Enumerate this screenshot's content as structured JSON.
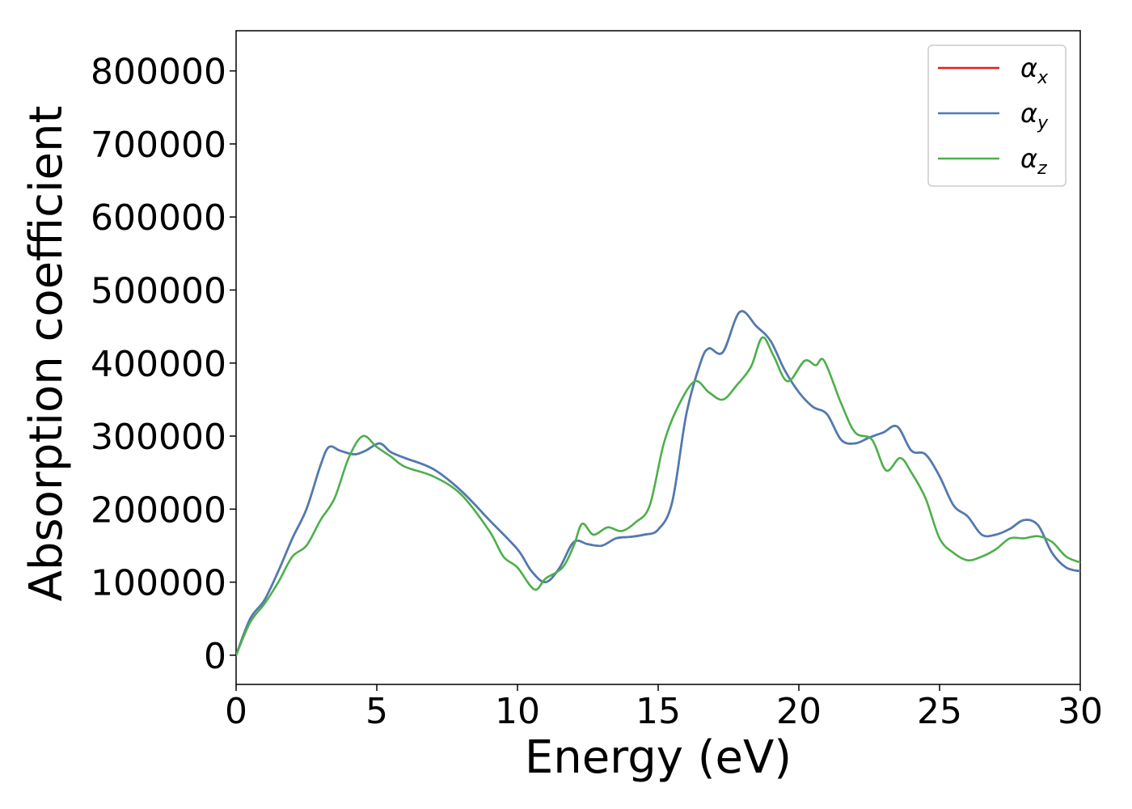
{
  "chart_data": {
    "type": "line",
    "title": "",
    "xlabel": "Energy (eV)",
    "ylabel": "Absorption coefficient",
    "xlim": [
      0,
      30
    ],
    "ylim": [
      -40000,
      855000
    ],
    "xticks": [
      0,
      5,
      10,
      15,
      20,
      25,
      30
    ],
    "yticks": [
      0,
      100000,
      200000,
      300000,
      400000,
      500000,
      600000,
      700000,
      800000
    ],
    "xtick_labels": [
      "0",
      "5",
      "10",
      "15",
      "20",
      "25",
      "30"
    ],
    "ytick_labels": [
      "0",
      "100000",
      "200000",
      "300000",
      "400000",
      "500000",
      "600000",
      "700000",
      "800000"
    ],
    "grid": false,
    "legend_position": "top-right",
    "series": [
      {
        "name": "α_x",
        "legend_symbol": "α",
        "legend_sub": "x",
        "color": "#e41a1c",
        "x": [
          0,
          0.5,
          1,
          1.5,
          2,
          2.5,
          3,
          3.3,
          3.7,
          4.2,
          4.6,
          5.1,
          5.5,
          6,
          7,
          8,
          9,
          10,
          10.5,
          11,
          11.5,
          12,
          12.5,
          13,
          13.5,
          14,
          14.5,
          15,
          15.5,
          16,
          16.5,
          16.8,
          17.3,
          17.9,
          18.5,
          19,
          19.5,
          20,
          20.5,
          21,
          21.5,
          22,
          22.5,
          23,
          23.5,
          24,
          24.5,
          25,
          25.5,
          26,
          26.5,
          27,
          27.5,
          28,
          28.5,
          29,
          29.5,
          30
        ],
        "y": [
          0,
          50000,
          75000,
          115000,
          160000,
          200000,
          260000,
          285000,
          280000,
          275000,
          280000,
          290000,
          278000,
          270000,
          255000,
          225000,
          185000,
          145000,
          115000,
          100000,
          120000,
          155000,
          152000,
          150000,
          160000,
          162000,
          165000,
          172000,
          210000,
          330000,
          400000,
          420000,
          415000,
          470000,
          450000,
          430000,
          390000,
          360000,
          340000,
          330000,
          295000,
          290000,
          298000,
          305000,
          313000,
          280000,
          275000,
          245000,
          205000,
          190000,
          165000,
          165000,
          173000,
          185000,
          178000,
          140000,
          120000,
          115000
        ]
      },
      {
        "name": "α_y",
        "legend_symbol": "α",
        "legend_sub": "y",
        "color": "#4a7db5",
        "x": [
          0,
          0.5,
          1,
          1.5,
          2,
          2.5,
          3,
          3.3,
          3.7,
          4.2,
          4.6,
          5.1,
          5.5,
          6,
          7,
          8,
          9,
          10,
          10.5,
          11,
          11.5,
          12,
          12.5,
          13,
          13.5,
          14,
          14.5,
          15,
          15.5,
          16,
          16.5,
          16.8,
          17.3,
          17.9,
          18.5,
          19,
          19.5,
          20,
          20.5,
          21,
          21.5,
          22,
          22.5,
          23,
          23.5,
          24,
          24.5,
          25,
          25.5,
          26,
          26.5,
          27,
          27.5,
          28,
          28.5,
          29,
          29.5,
          30
        ],
        "y": [
          0,
          50000,
          75000,
          115000,
          160000,
          200000,
          260000,
          285000,
          280000,
          275000,
          280000,
          290000,
          278000,
          270000,
          255000,
          225000,
          185000,
          145000,
          115000,
          100000,
          120000,
          155000,
          152000,
          150000,
          160000,
          162000,
          165000,
          172000,
          210000,
          330000,
          400000,
          420000,
          415000,
          470000,
          450000,
          430000,
          390000,
          360000,
          340000,
          330000,
          295000,
          290000,
          298000,
          305000,
          313000,
          280000,
          275000,
          245000,
          205000,
          190000,
          165000,
          165000,
          173000,
          185000,
          178000,
          140000,
          120000,
          115000
        ]
      },
      {
        "name": "α_z",
        "legend_symbol": "α",
        "legend_sub": "z",
        "color": "#4daf4a",
        "x": [
          0,
          0.5,
          1,
          1.5,
          2,
          2.5,
          3,
          3.5,
          4,
          4.5,
          5,
          5.5,
          6,
          7,
          8,
          9,
          9.5,
          10,
          10.6,
          11,
          11.6,
          12,
          12.3,
          12.7,
          13.2,
          13.7,
          14.2,
          14.7,
          15.2,
          15.7,
          16.3,
          16.8,
          17.3,
          17.8,
          18.3,
          18.7,
          19.1,
          19.6,
          20.2,
          20.6,
          20.9,
          21.5,
          22,
          22.6,
          23.1,
          23.6,
          24,
          24.5,
          25,
          25.5,
          26,
          26.5,
          27,
          27.5,
          28,
          28.5,
          29,
          29.5,
          30
        ],
        "y": [
          0,
          45000,
          70000,
          100000,
          135000,
          150000,
          185000,
          215000,
          270000,
          300000,
          285000,
          272000,
          258000,
          245000,
          220000,
          170000,
          135000,
          120000,
          90000,
          105000,
          120000,
          150000,
          180000,
          165000,
          175000,
          170000,
          182000,
          205000,
          290000,
          340000,
          375000,
          360000,
          350000,
          370000,
          395000,
          435000,
          410000,
          375000,
          403000,
          397000,
          403000,
          345000,
          305000,
          295000,
          253000,
          270000,
          250000,
          215000,
          160000,
          140000,
          130000,
          135000,
          145000,
          160000,
          160000,
          163000,
          155000,
          135000,
          127000
        ]
      }
    ]
  }
}
